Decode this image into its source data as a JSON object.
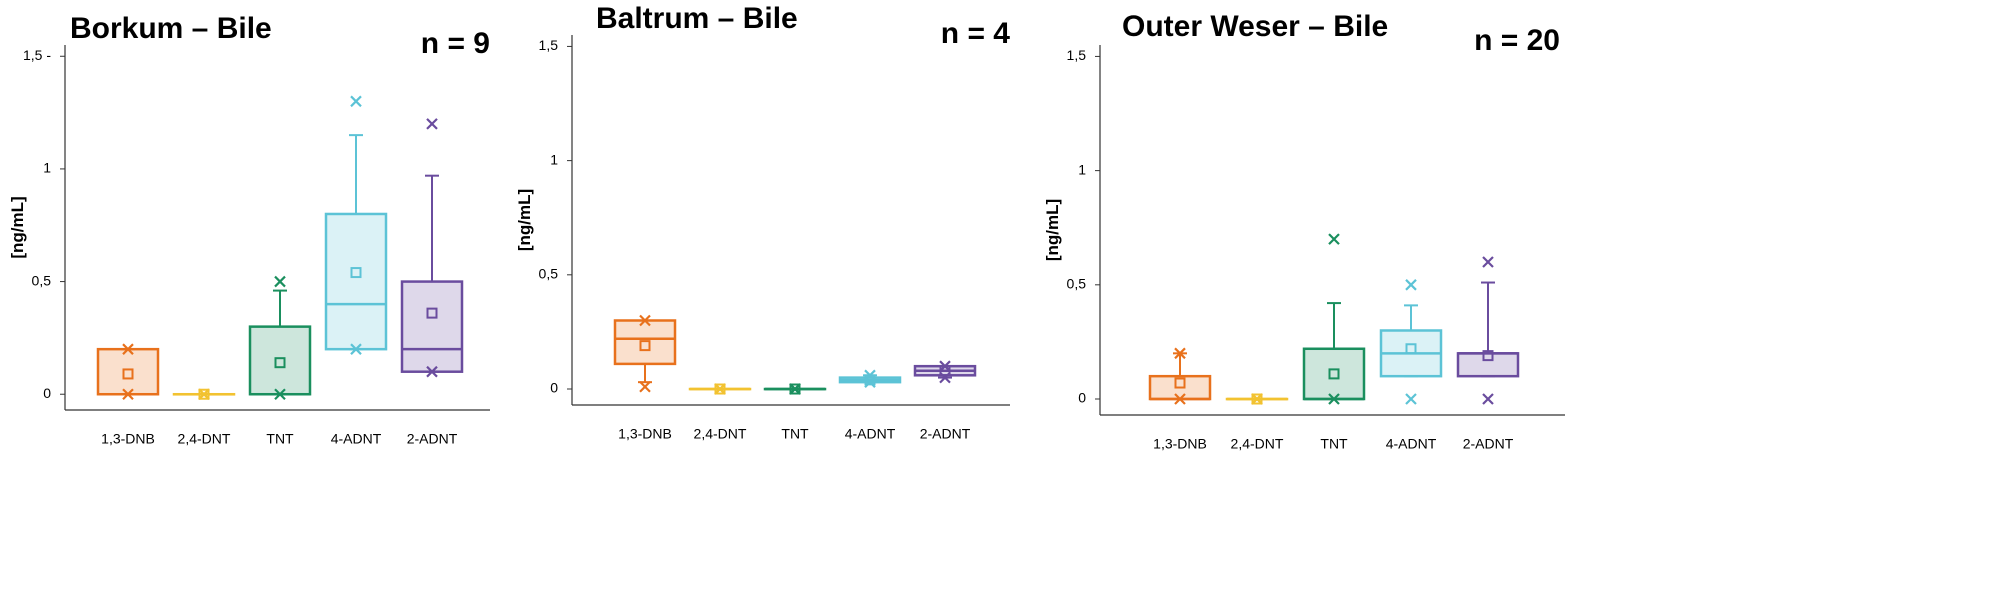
{
  "chart_data": [
    {
      "type": "box",
      "title": "Borkum – Bile",
      "annotation": "n = 9",
      "y_label": "[ng/mL]",
      "categories": [
        "1,3-DNB",
        "2,4-DNT",
        "TNT",
        "4-ADNT",
        "2-ADNT"
      ],
      "colors": [
        "#e8711c",
        "#f2c230",
        "#1a8f5e",
        "#5cc3d6",
        "#6a4c9e"
      ],
      "ylim": [
        -0.07,
        1.55
      ],
      "yticks": [
        0,
        {
          "value": 0.5,
          "label": "0,5"
        },
        1,
        {
          "value": 1.5,
          "label": "1,5 -"
        }
      ],
      "boxes": [
        {
          "whisker_low": 0,
          "q1": 0,
          "median": 0,
          "q3": 0.2,
          "whisker_high": 0.2,
          "mean": 0.09,
          "min": 0,
          "max": 0.2
        },
        {
          "whisker_low": 0,
          "q1": 0,
          "median": 0,
          "q3": 0,
          "whisker_high": 0,
          "mean": 0,
          "min": 0,
          "max": 0
        },
        {
          "whisker_low": 0,
          "q1": 0,
          "median": 0,
          "q3": 0.3,
          "whisker_high": 0.46,
          "mean": 0.14,
          "min": 0,
          "max": 0.5
        },
        {
          "whisker_low": 0.2,
          "q1": 0.2,
          "median": 0.4,
          "q3": 0.8,
          "whisker_high": 1.15,
          "mean": 0.54,
          "min": 0.2,
          "max": 1.3
        },
        {
          "whisker_low": 0.1,
          "q1": 0.1,
          "median": 0.2,
          "q3": 0.5,
          "whisker_high": 0.97,
          "mean": 0.36,
          "min": 0.1,
          "max": 1.2
        }
      ]
    },
    {
      "type": "box",
      "title": "Baltrum – Bile",
      "annotation": "n = 4",
      "y_label": "[ng/mL]",
      "categories": [
        "1,3-DNB",
        "2,4-DNT",
        "TNT",
        "4-ADNT",
        "2-ADNT"
      ],
      "colors": [
        "#e8711c",
        "#f2c230",
        "#1a8f5e",
        "#5cc3d6",
        "#6a4c9e"
      ],
      "ylim": [
        -0.07,
        1.55
      ],
      "yticks": [
        0,
        {
          "value": 0.5,
          "label": "0,5"
        },
        1,
        {
          "value": 1.5,
          "label": "1,5"
        }
      ],
      "boxes": [
        {
          "whisker_low": 0.03,
          "q1": 0.11,
          "median": 0.22,
          "q3": 0.3,
          "whisker_high": 0.3,
          "mean": 0.19,
          "min": 0.01,
          "max": 0.3
        },
        {
          "whisker_low": 0,
          "q1": 0,
          "median": 0,
          "q3": 0,
          "whisker_high": 0,
          "mean": 0,
          "min": 0,
          "max": 0
        },
        {
          "whisker_low": 0,
          "q1": 0,
          "median": 0,
          "q3": 0,
          "whisker_high": 0,
          "mean": 0,
          "min": 0,
          "max": 0
        },
        {
          "whisker_low": 0.03,
          "q1": 0.03,
          "median": 0.04,
          "q3": 0.05,
          "whisker_high": 0.06,
          "mean": 0.04,
          "min": 0.03,
          "max": 0.06
        },
        {
          "whisker_low": 0.05,
          "q1": 0.06,
          "median": 0.08,
          "q3": 0.1,
          "whisker_high": 0.1,
          "mean": 0.08,
          "min": 0.05,
          "max": 0.1
        }
      ]
    },
    {
      "type": "box",
      "title": "Outer Weser – Bile",
      "annotation": "n = 20",
      "y_label": "[ng/mL]",
      "categories": [
        "1,3-DNB",
        "2,4-DNT",
        "TNT",
        "4-ADNT",
        "2-ADNT"
      ],
      "colors": [
        "#e8711c",
        "#f2c230",
        "#1a8f5e",
        "#5cc3d6",
        "#6a4c9e"
      ],
      "ylim": [
        -0.07,
        1.55
      ],
      "yticks": [
        0,
        {
          "value": 0.5,
          "label": "0,5"
        },
        1,
        {
          "value": 1.5,
          "label": "1,5"
        }
      ],
      "boxes": [
        {
          "whisker_low": 0,
          "q1": 0,
          "median": 0,
          "q3": 0.1,
          "whisker_high": 0.2,
          "mean": 0.07,
          "min": 0,
          "max": 0.2
        },
        {
          "whisker_low": 0,
          "q1": 0,
          "median": 0,
          "q3": 0,
          "whisker_high": 0,
          "mean": 0,
          "min": 0,
          "max": 0
        },
        {
          "whisker_low": 0,
          "q1": 0,
          "median": 0,
          "q3": 0.22,
          "whisker_high": 0.42,
          "mean": 0.11,
          "min": 0,
          "max": 0.7
        },
        {
          "whisker_low": 0.1,
          "q1": 0.1,
          "median": 0.2,
          "q3": 0.3,
          "whisker_high": 0.41,
          "mean": 0.22,
          "min": 0,
          "max": 0.5
        },
        {
          "whisker_low": 0.1,
          "q1": 0.1,
          "median": 0.2,
          "q3": 0.2,
          "whisker_high": 0.51,
          "mean": 0.19,
          "min": 0,
          "max": 0.6
        }
      ]
    }
  ]
}
